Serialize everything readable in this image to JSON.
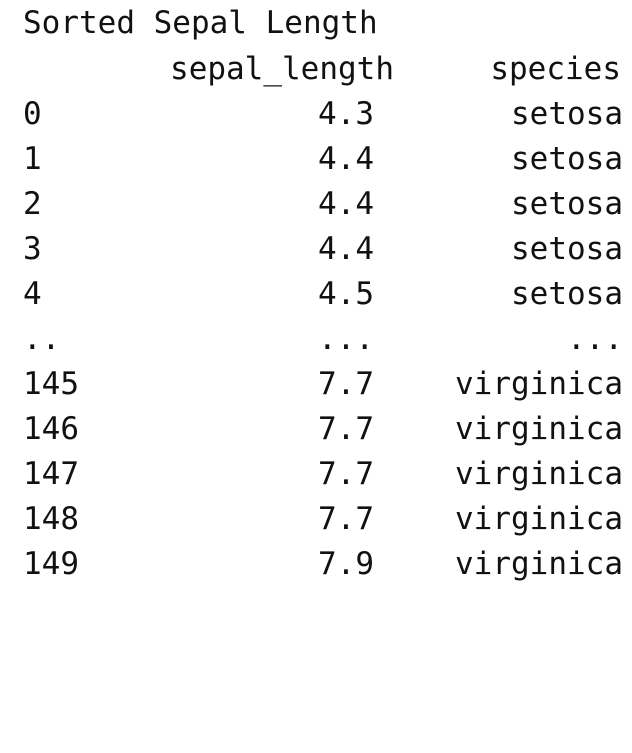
{
  "output": {
    "title": "Sorted Sepal Length",
    "columns": {
      "sepal_length": "sepal_length",
      "species": "species"
    },
    "rows": [
      {
        "index": "0",
        "sepal_length": "4.3",
        "species": "setosa"
      },
      {
        "index": "1",
        "sepal_length": "4.4",
        "species": "setosa"
      },
      {
        "index": "2",
        "sepal_length": "4.4",
        "species": "setosa"
      },
      {
        "index": "3",
        "sepal_length": "4.4",
        "species": "setosa"
      },
      {
        "index": "4",
        "sepal_length": "4.5",
        "species": "setosa"
      },
      {
        "index": "..",
        "sepal_length": "...",
        "species": "..."
      },
      {
        "index": "145",
        "sepal_length": "7.7",
        "species": "virginica"
      },
      {
        "index": "146",
        "sepal_length": "7.7",
        "species": "virginica"
      },
      {
        "index": "147",
        "sepal_length": "7.7",
        "species": "virginica"
      },
      {
        "index": "148",
        "sepal_length": "7.7",
        "species": "virginica"
      },
      {
        "index": "149",
        "sepal_length": "7.9",
        "species": "virginica"
      }
    ]
  }
}
